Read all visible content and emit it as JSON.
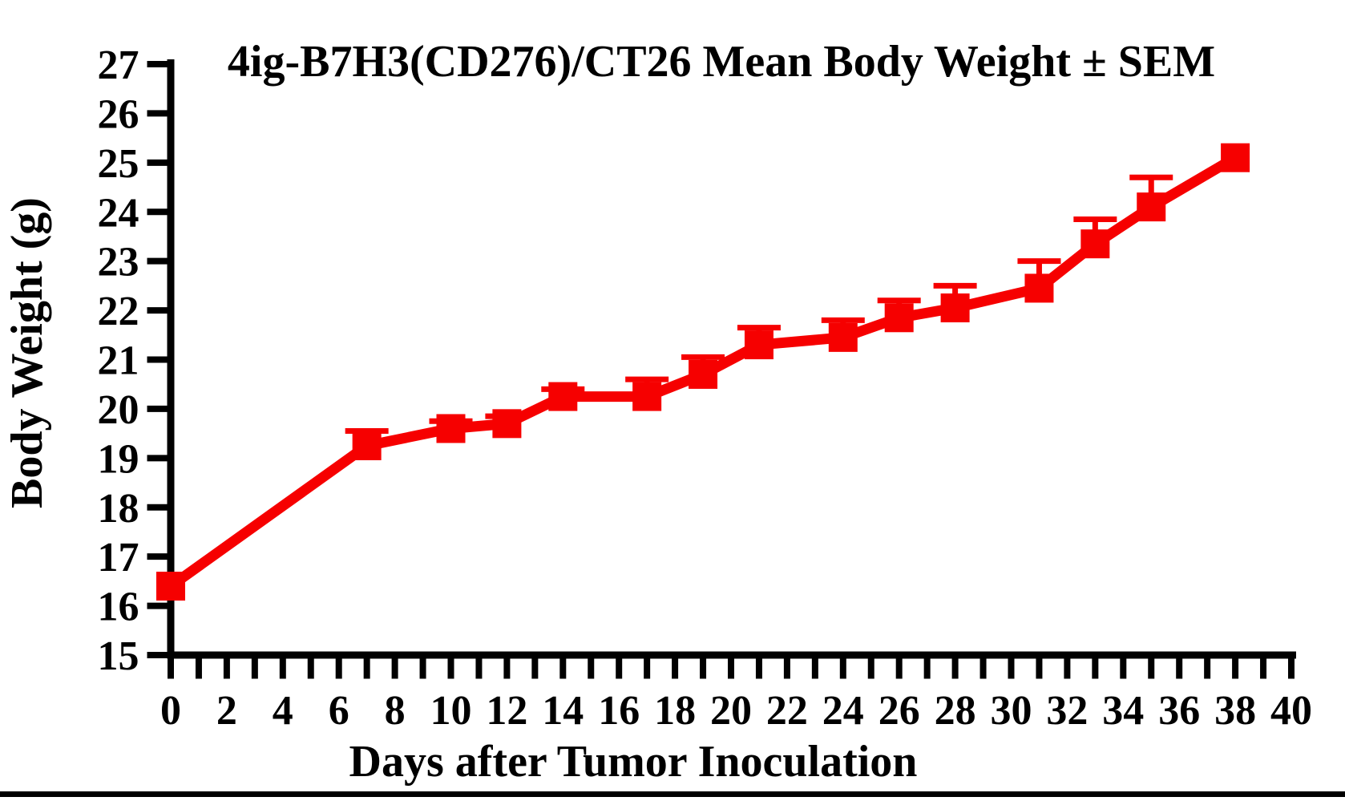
{
  "page": {
    "background_color": "#ffffff",
    "bottom_bar_color": "#000000"
  },
  "chart_data": {
    "type": "line",
    "title": "4ig-B7H3(CD276)/CT26 Mean Body Weight ± SEM",
    "xlabel": "Days after Tumor Inoculation",
    "ylabel": "Body Weight (g)",
    "xlim": [
      0,
      40
    ],
    "ylim": [
      15,
      27
    ],
    "x_tick_labels": [
      0,
      2,
      4,
      6,
      8,
      10,
      12,
      14,
      16,
      18,
      20,
      22,
      24,
      26,
      28,
      30,
      32,
      34,
      36,
      38,
      40
    ],
    "x_minor_tick_step": 1,
    "y_tick_labels": [
      15,
      16,
      17,
      18,
      19,
      20,
      21,
      22,
      23,
      24,
      25,
      26,
      27
    ],
    "grid": false,
    "legend_position": "none",
    "error_bars": "SEM upper side only",
    "series": [
      {
        "name": "4ig-B7H3(CD276)/CT26 mean body weight",
        "color": "#f60000",
        "marker": "square",
        "x": [
          0,
          7,
          10,
          12,
          14,
          17,
          19,
          21,
          24,
          26,
          28,
          31,
          33,
          35,
          38
        ],
        "y": [
          16.4,
          19.25,
          19.6,
          19.7,
          20.25,
          20.25,
          20.7,
          21.3,
          21.45,
          21.85,
          22.05,
          22.45,
          23.35,
          24.1,
          25.1
        ],
        "sem": [
          0,
          0.3,
          0.15,
          0.15,
          0.15,
          0.35,
          0.35,
          0.35,
          0.35,
          0.35,
          0.45,
          0.55,
          0.5,
          0.6,
          0
        ]
      }
    ]
  }
}
